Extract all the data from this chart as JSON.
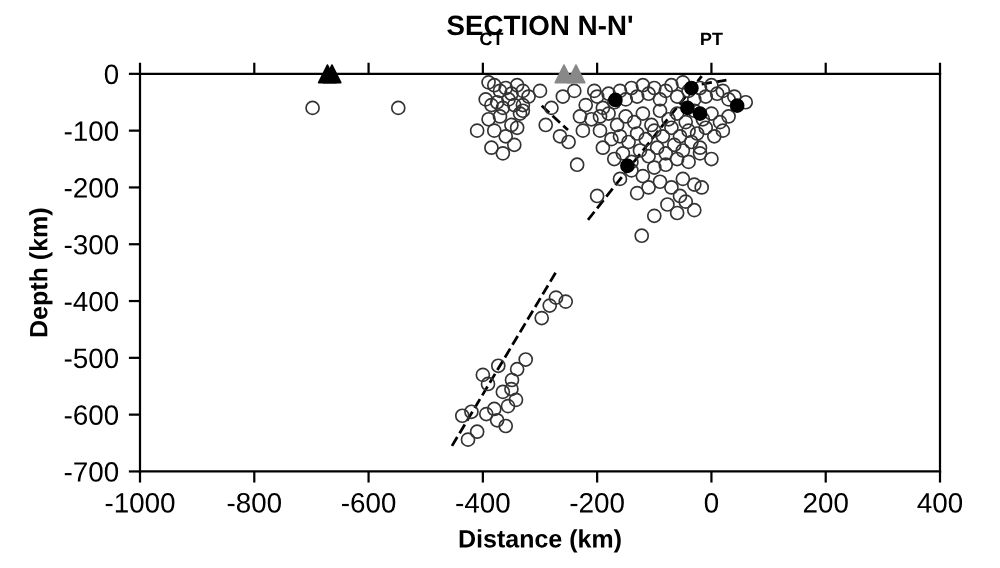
{
  "chart_data": {
    "type": "scatter",
    "title": "SECTION N-N'",
    "xlabel": "Distance (km)",
    "ylabel": "Depth (km)",
    "xlim": [
      -1000,
      400
    ],
    "xticks": [
      -1000,
      -800,
      -600,
      -400,
      -200,
      0,
      200,
      400
    ],
    "ylim": [
      -700,
      0
    ],
    "yticks": [
      0,
      -100,
      -200,
      -300,
      -400,
      -500,
      -600,
      -700
    ],
    "grid": false,
    "annotations": [
      {
        "text": "CT",
        "x": -385,
        "y": 0
      },
      {
        "text": "PT",
        "x": 0,
        "y": 0
      }
    ],
    "series": [
      {
        "marker": "circle",
        "color": "#333333",
        "x": [
          -698,
          -548,
          -390,
          -380,
          -370,
          -360,
          -350,
          -340,
          -330,
          -320,
          -395,
          -385,
          -375,
          -365,
          -355,
          -345,
          -335,
          -390,
          -370,
          -350,
          -330,
          -380,
          -360,
          -340,
          -385,
          -365,
          -345,
          -300,
          -280,
          -260,
          -240,
          -230,
          -205,
          -265,
          -290,
          -250,
          -225,
          -195,
          -235,
          -330,
          -410,
          -220,
          -200,
          -190,
          -180,
          -170,
          -160,
          -150,
          -140,
          -130,
          -120,
          -110,
          -100,
          -90,
          -80,
          -70,
          -60,
          -50,
          -40,
          -30,
          -20,
          -10,
          0,
          10,
          20,
          30,
          40,
          60,
          -210,
          -195,
          -180,
          -165,
          -150,
          -135,
          -120,
          -105,
          -90,
          -75,
          -60,
          -45,
          -30,
          -15,
          0,
          15,
          30,
          -190,
          -175,
          -160,
          -145,
          -130,
          -115,
          -100,
          -85,
          -70,
          -55,
          -40,
          -25,
          -10,
          5,
          20,
          -170,
          -155,
          -140,
          -125,
          -110,
          -95,
          -80,
          -65,
          -50,
          -35,
          -20,
          -160,
          -140,
          -120,
          -100,
          -80,
          -60,
          -40,
          -20,
          0,
          -130,
          -110,
          -90,
          -70,
          -50,
          -30,
          -77,
          -60,
          -45,
          -30,
          -17,
          -122,
          -200,
          -100,
          -55,
          -272,
          -255,
          -283,
          -297,
          -325,
          -373,
          -391,
          -349,
          -342,
          -394,
          -436,
          -356,
          -380,
          -365,
          -350,
          -400,
          -375,
          -360,
          -410,
          -420,
          -426,
          -340
        ],
        "values": [
          -60,
          -60,
          -15,
          -20,
          -30,
          -25,
          -35,
          -20,
          -30,
          -40,
          -45,
          -55,
          -50,
          -60,
          -45,
          -55,
          -70,
          -80,
          -75,
          -90,
          -65,
          -100,
          -110,
          -95,
          -130,
          -140,
          -125,
          -30,
          -60,
          -40,
          -30,
          -75,
          -30,
          -110,
          -90,
          -120,
          -100,
          -75,
          -160,
          -55,
          -100,
          -55,
          -40,
          -60,
          -35,
          -50,
          -30,
          -45,
          -25,
          -40,
          -20,
          -35,
          -25,
          -45,
          -30,
          -20,
          -40,
          -15,
          -30,
          -45,
          -25,
          -40,
          -20,
          -35,
          -30,
          -45,
          -40,
          -50,
          -80,
          -100,
          -70,
          -90,
          -75,
          -85,
          -70,
          -90,
          -65,
          -80,
          -70,
          -85,
          -65,
          -80,
          -70,
          -85,
          -75,
          -130,
          -115,
          -110,
          -120,
          -105,
          -115,
          -100,
          -110,
          -95,
          -110,
          -100,
          -105,
          -95,
          -110,
          -100,
          -150,
          -140,
          -155,
          -135,
          -145,
          -130,
          -140,
          -125,
          -135,
          -120,
          -130,
          -185,
          -170,
          -180,
          -165,
          -160,
          -150,
          -155,
          -140,
          -150,
          -210,
          -200,
          -190,
          -200,
          -185,
          -195,
          -230,
          -245,
          -225,
          -240,
          -200,
          -285,
          -215,
          -250,
          -215,
          -394,
          -401,
          -408,
          -430,
          -503,
          -514,
          -546,
          -539,
          -574,
          -599,
          -602,
          -585,
          -590,
          -560,
          -555,
          -530,
          -610,
          -620,
          -630,
          -595,
          -644,
          -520
        ]
      },
      {
        "marker": "circle",
        "color": "#000000",
        "x": [
          -168,
          -147,
          -35,
          -42,
          45,
          -20
        ],
        "values": [
          -46,
          -162,
          -25,
          -60,
          -56,
          -70
        ]
      },
      {
        "marker": "triangle",
        "color": "#000000",
        "x": [
          -672,
          -664
        ],
        "values": [
          0,
          0
        ]
      },
      {
        "marker": "triangle",
        "color": "#888888",
        "x": [
          -258,
          -237
        ],
        "values": [
          0,
          0
        ]
      },
      {
        "type": "line",
        "line_style": "dashed",
        "color": "#000000",
        "x": [
          -454,
          -272,
          null,
          -216,
          -17,
          null,
          -297,
          -251,
          null,
          -17,
          28
        ],
        "values": [
          -655,
          -349,
          null,
          -257,
          -4,
          null,
          -56,
          -99,
          null,
          -18,
          -11
        ]
      }
    ]
  }
}
